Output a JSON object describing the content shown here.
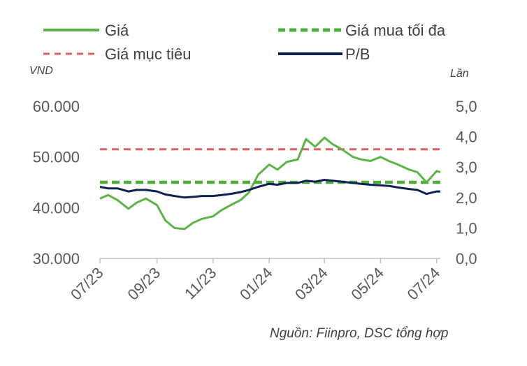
{
  "colors": {
    "price": "#5DB347",
    "max_buy": "#4DAF3A",
    "target": "#E06060",
    "pb": "#0D2152",
    "axis": "#BFBFBF"
  },
  "chart_data": {
    "type": "line",
    "left_unit": "VND",
    "right_unit": "Lần",
    "source": "Nguồn: Fiinpro, DSC tổng hợp",
    "legend": [
      {
        "label": "Giá",
        "key": "price",
        "style": "solid"
      },
      {
        "label": "Giá mua tối đa",
        "key": "max_buy",
        "style": "dashed"
      },
      {
        "label": "Giá mục tiêu",
        "key": "target",
        "style": "dashed"
      },
      {
        "label": "P/B",
        "key": "pb",
        "style": "solid"
      }
    ],
    "x_ticks": [
      "07/23",
      "09/23",
      "11/23",
      "01/24",
      "03/24",
      "05/24",
      "07/24"
    ],
    "y_left": {
      "min": 30000,
      "max": 60000,
      "ticks": [
        "30.000",
        "40.000",
        "50.000",
        "60.000"
      ],
      "tick_values": [
        30000,
        40000,
        50000,
        60000
      ]
    },
    "y_right": {
      "min": 0,
      "max": 5,
      "ticks": [
        "0,0",
        "1,0",
        "2,0",
        "3,0",
        "4,0",
        "5,0"
      ],
      "tick_values": [
        0,
        1,
        2,
        3,
        4,
        5
      ]
    },
    "series": [
      {
        "name": "Giá",
        "axis": "left",
        "x": [
          "2023-07-01",
          "2023-07-10",
          "2023-07-20",
          "2023-08-01",
          "2023-08-10",
          "2023-08-20",
          "2023-09-01",
          "2023-09-10",
          "2023-09-20",
          "2023-10-01",
          "2023-10-10",
          "2023-10-20",
          "2023-11-01",
          "2023-11-10",
          "2023-11-20",
          "2023-12-01",
          "2023-12-10",
          "2023-12-20",
          "2024-01-01",
          "2024-01-10",
          "2024-01-20",
          "2024-02-01",
          "2024-02-10",
          "2024-02-20",
          "2024-03-01",
          "2024-03-10",
          "2024-03-20",
          "2024-04-01",
          "2024-04-10",
          "2024-04-20",
          "2024-05-01",
          "2024-05-10",
          "2024-05-20",
          "2024-06-01",
          "2024-06-10",
          "2024-06-20",
          "2024-07-01",
          "2024-07-05"
        ],
        "y": [
          41800,
          42500,
          41500,
          39800,
          41000,
          41800,
          40500,
          37500,
          36000,
          35800,
          37000,
          37800,
          38300,
          39500,
          40500,
          41500,
          43000,
          46500,
          48500,
          47500,
          49000,
          49500,
          53500,
          52000,
          53800,
          52500,
          51500,
          50000,
          49500,
          49200,
          50000,
          49200,
          48500,
          47500,
          47000,
          45000,
          47200,
          47000
        ]
      },
      {
        "name": "P/B",
        "axis": "right",
        "x": [
          "2023-07-01",
          "2023-07-10",
          "2023-07-20",
          "2023-08-01",
          "2023-08-10",
          "2023-08-20",
          "2023-09-01",
          "2023-09-10",
          "2023-09-20",
          "2023-10-01",
          "2023-10-10",
          "2023-10-20",
          "2023-11-01",
          "2023-11-10",
          "2023-11-20",
          "2023-12-01",
          "2023-12-10",
          "2023-12-20",
          "2024-01-01",
          "2024-01-10",
          "2024-01-20",
          "2024-02-01",
          "2024-02-10",
          "2024-02-20",
          "2024-03-01",
          "2024-03-10",
          "2024-03-20",
          "2024-04-01",
          "2024-04-10",
          "2024-04-20",
          "2024-05-01",
          "2024-05-10",
          "2024-05-20",
          "2024-06-01",
          "2024-06-10",
          "2024-06-20",
          "2024-07-01",
          "2024-07-05"
        ],
        "y": [
          2.35,
          2.3,
          2.3,
          2.2,
          2.25,
          2.25,
          2.2,
          2.1,
          2.05,
          2.0,
          2.02,
          2.05,
          2.05,
          2.08,
          2.12,
          2.18,
          2.25,
          2.35,
          2.45,
          2.42,
          2.48,
          2.48,
          2.55,
          2.52,
          2.58,
          2.55,
          2.52,
          2.48,
          2.45,
          2.42,
          2.4,
          2.38,
          2.33,
          2.28,
          2.25,
          2.12,
          2.2,
          2.2
        ]
      },
      {
        "name": "Giá mua tối đa",
        "axis": "left",
        "x": [
          "2023-07-01",
          "2024-07-05"
        ],
        "y": [
          45000,
          45000
        ]
      },
      {
        "name": "Giá mục tiêu",
        "axis": "left",
        "x": [
          "2023-07-01",
          "2024-07-05"
        ],
        "y": [
          51500,
          51500
        ]
      }
    ],
    "grid": false,
    "legend_position": "top"
  }
}
